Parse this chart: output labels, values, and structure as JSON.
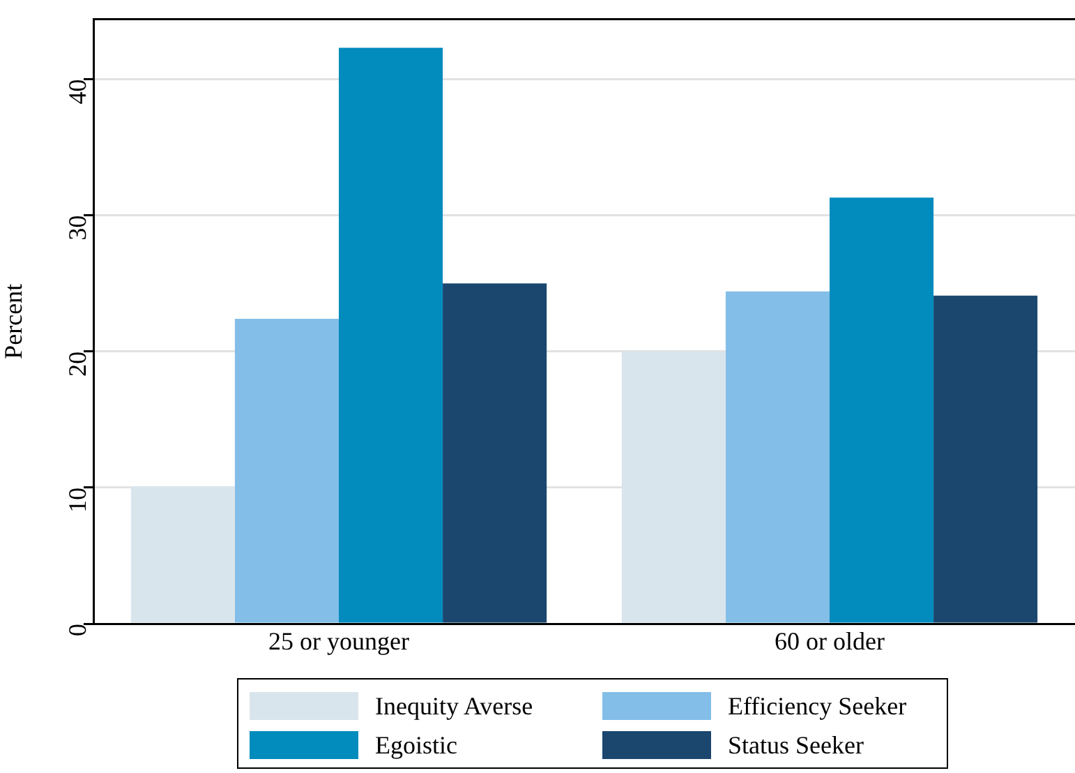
{
  "chart_data": {
    "type": "bar",
    "ylabel": "Percent",
    "categories": [
      "25 or younger",
      "60 or older"
    ],
    "series": [
      {
        "name": "Inequity Averse",
        "color": "#d9e5ec",
        "values": [
          10.1,
          20.0
        ]
      },
      {
        "name": "Efficiency Seeker",
        "color": "#83bee8",
        "values": [
          22.4,
          24.4
        ]
      },
      {
        "name": "Egoistic",
        "color": "#028bbd",
        "values": [
          42.3,
          31.3
        ]
      },
      {
        "name": "Status Seeker",
        "color": "#1b476f",
        "values": [
          25.0,
          24.1
        ]
      }
    ],
    "ylim": [
      0,
      44.4
    ],
    "yticks": [
      0,
      10,
      20,
      30,
      40
    ],
    "grid": "y",
    "legend": "bottom"
  }
}
